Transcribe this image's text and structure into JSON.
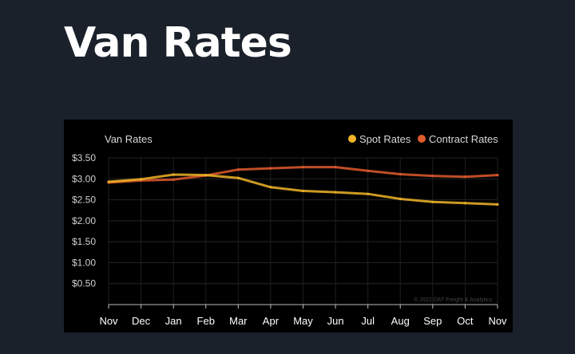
{
  "page": {
    "title": "Van Rates"
  },
  "chart_data": {
    "type": "line",
    "title": "Van Rates",
    "categories": [
      "Nov",
      "Dec",
      "Jan",
      "Feb",
      "Mar",
      "Apr",
      "May",
      "Jun",
      "Jul",
      "Aug",
      "Sep",
      "Oct",
      "Nov"
    ],
    "y_ticks": [
      "$0.50",
      "$1.00",
      "$1.50",
      "$2.00",
      "$2.50",
      "$3.00",
      "$3.50"
    ],
    "ylim": [
      0,
      3.5
    ],
    "grid": true,
    "legend_position": "top-right",
    "series": [
      {
        "name": "Spot Rates",
        "color": "#f0b428",
        "values": [
          2.93,
          2.99,
          3.1,
          3.09,
          3.02,
          2.8,
          2.71,
          2.68,
          2.64,
          2.52,
          2.45,
          2.42,
          2.39
        ]
      },
      {
        "name": "Contract Rates",
        "color": "#e05a2c",
        "values": [
          2.91,
          2.96,
          2.98,
          3.08,
          3.22,
          3.25,
          3.28,
          3.28,
          3.19,
          3.11,
          3.07,
          3.05,
          3.09
        ]
      }
    ],
    "credit": "© 2022 DAT Freight & Analytics"
  }
}
